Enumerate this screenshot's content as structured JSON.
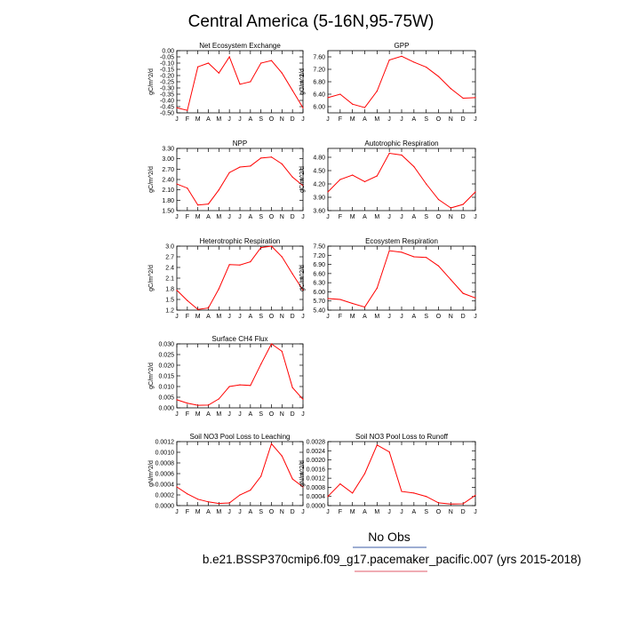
{
  "figure": {
    "title": "Central America (5-16N,95-75W)",
    "obs_label": "No Obs",
    "case_label": "b.e21.BSSP370cmip6.f09_g17.pacemaker_pacific.007 (yrs 2015-2018)",
    "colors": {
      "line": "#ff0000",
      "obs_underline": "#3b5ba5",
      "case_underline": "#e05a6a",
      "axis": "#000000"
    }
  },
  "chart_data": [
    {
      "type": "line",
      "title": "Net Ecosystem Exchange",
      "ylabel": "gC/m^2/d",
      "categories": [
        "J",
        "F",
        "M",
        "A",
        "M",
        "J",
        "J",
        "A",
        "S",
        "O",
        "N",
        "D",
        "J"
      ],
      "values": [
        -0.46,
        -0.48,
        -0.13,
        -0.1,
        -0.18,
        -0.05,
        -0.27,
        -0.25,
        -0.1,
        -0.08,
        -0.18,
        -0.32,
        -0.46
      ],
      "ylim": [
        -0.5,
        0.0
      ],
      "yticks": [
        "0.00",
        "-0.05",
        "-0.10",
        "-0.15",
        "-0.20",
        "-0.25",
        "-0.30",
        "-0.35",
        "-0.40",
        "-0.45",
        "-0.50"
      ],
      "grid": false
    },
    {
      "type": "line",
      "title": "GPP",
      "ylabel": "gC/m^2/d",
      "categories": [
        "J",
        "F",
        "M",
        "A",
        "M",
        "J",
        "J",
        "A",
        "S",
        "O",
        "N",
        "D",
        "J"
      ],
      "values": [
        6.29,
        6.4,
        6.08,
        5.97,
        6.5,
        7.5,
        7.62,
        7.43,
        7.27,
        6.97,
        6.58,
        6.27,
        6.29
      ],
      "ylim": [
        5.8,
        7.8
      ],
      "yticks": [
        "7.60",
        "7.20",
        "6.80",
        "6.40",
        "6.00"
      ],
      "grid": false
    },
    {
      "type": "line",
      "title": "NPP",
      "ylabel": "gC/m^2/d",
      "categories": [
        "J",
        "F",
        "M",
        "A",
        "M",
        "J",
        "J",
        "A",
        "S",
        "O",
        "N",
        "D",
        "J"
      ],
      "values": [
        2.27,
        2.15,
        1.66,
        1.69,
        2.1,
        2.6,
        2.76,
        2.79,
        3.02,
        3.05,
        2.85,
        2.47,
        2.22
      ],
      "ylim": [
        1.5,
        3.3
      ],
      "yticks": [
        "3.30",
        "3.00",
        "2.70",
        "2.40",
        "2.10",
        "1.80",
        "1.50"
      ],
      "grid": false
    },
    {
      "type": "line",
      "title": "Autotrophic Respiration",
      "ylabel": "gC/m^2/d",
      "categories": [
        "J",
        "F",
        "M",
        "A",
        "M",
        "J",
        "J",
        "A",
        "S",
        "O",
        "N",
        "D",
        "J"
      ],
      "values": [
        4.02,
        4.3,
        4.4,
        4.25,
        4.38,
        4.89,
        4.85,
        4.59,
        4.2,
        3.85,
        3.66,
        3.74,
        4.02
      ],
      "ylim": [
        3.6,
        5.0
      ],
      "yticks": [
        "4.80",
        "4.50",
        "4.20",
        "3.90",
        "3.60"
      ],
      "grid": false
    },
    {
      "type": "line",
      "title": "Heterotrophic Respiration",
      "ylabel": "gC/m^2/d",
      "categories": [
        "J",
        "F",
        "M",
        "A",
        "M",
        "J",
        "J",
        "A",
        "S",
        "O",
        "N",
        "D",
        "J"
      ],
      "values": [
        1.76,
        1.47,
        1.22,
        1.26,
        1.8,
        2.48,
        2.47,
        2.56,
        2.96,
        3.0,
        2.7,
        2.22,
        1.76
      ],
      "ylim": [
        1.2,
        3.0
      ],
      "yticks": [
        "3.0",
        "2.7",
        "2.4",
        "2.1",
        "1.8",
        "1.5",
        "1.2"
      ],
      "grid": false
    },
    {
      "type": "line",
      "title": "Ecosystem Respiration",
      "ylabel": "gC/m^2/d",
      "categories": [
        "J",
        "F",
        "M",
        "A",
        "M",
        "J",
        "J",
        "A",
        "S",
        "O",
        "N",
        "D",
        "J"
      ],
      "values": [
        5.78,
        5.75,
        5.62,
        5.5,
        6.12,
        7.35,
        7.3,
        7.15,
        7.13,
        6.85,
        6.4,
        5.95,
        5.8
      ],
      "ylim": [
        5.4,
        7.5
      ],
      "yticks": [
        "7.50",
        "7.20",
        "6.90",
        "6.60",
        "6.30",
        "6.00",
        "5.70",
        "5.40"
      ],
      "grid": false
    },
    {
      "type": "line",
      "title": "Surface CH4 Flux",
      "ylabel": "gC/m^2/d",
      "categories": [
        "J",
        "F",
        "M",
        "A",
        "M",
        "J",
        "J",
        "A",
        "S",
        "O",
        "N",
        "D",
        "J"
      ],
      "values": [
        0.0038,
        0.0022,
        0.0012,
        0.0013,
        0.0042,
        0.01,
        0.0108,
        0.0105,
        0.0205,
        0.03,
        0.0265,
        0.0095,
        0.004
      ],
      "ylim": [
        0.0,
        0.03
      ],
      "yticks": [
        "0.030",
        "0.025",
        "0.020",
        "0.015",
        "0.010",
        "0.005",
        "0.000"
      ],
      "grid": false
    },
    {
      "type": "line",
      "title": "Soil NO3 Pool Loss to Leaching",
      "ylabel": "gN/m^2/d",
      "categories": [
        "J",
        "F",
        "M",
        "A",
        "M",
        "J",
        "J",
        "A",
        "S",
        "O",
        "N",
        "D",
        "J"
      ],
      "values": [
        0.00035,
        0.00022,
        0.00012,
        7e-05,
        4e-05,
        5e-05,
        0.0002,
        0.00029,
        0.00055,
        0.00116,
        0.00093,
        0.0005,
        0.00035
      ],
      "ylim": [
        0.0,
        0.0012
      ],
      "yticks": [
        "0.0012",
        "0.0010",
        "0.0008",
        "0.0006",
        "0.0004",
        "0.0002",
        "0.0000"
      ],
      "grid": false
    },
    {
      "type": "line",
      "title": "Soil NO3 Pool Loss to Runoff",
      "ylabel": "gN/m^2/d",
      "categories": [
        "J",
        "F",
        "M",
        "A",
        "M",
        "J",
        "J",
        "A",
        "S",
        "O",
        "N",
        "D",
        "J"
      ],
      "values": [
        0.0004,
        0.00095,
        0.00055,
        0.0014,
        0.00265,
        0.00235,
        0.00062,
        0.00055,
        0.0004,
        0.00012,
        7e-05,
        8e-05,
        0.00045
      ],
      "ylim": [
        0.0,
        0.0028
      ],
      "yticks": [
        "0.0028",
        "0.0024",
        "0.0020",
        "0.0016",
        "0.0012",
        "0.0008",
        "0.0004",
        "0.0000"
      ],
      "grid": false
    }
  ]
}
